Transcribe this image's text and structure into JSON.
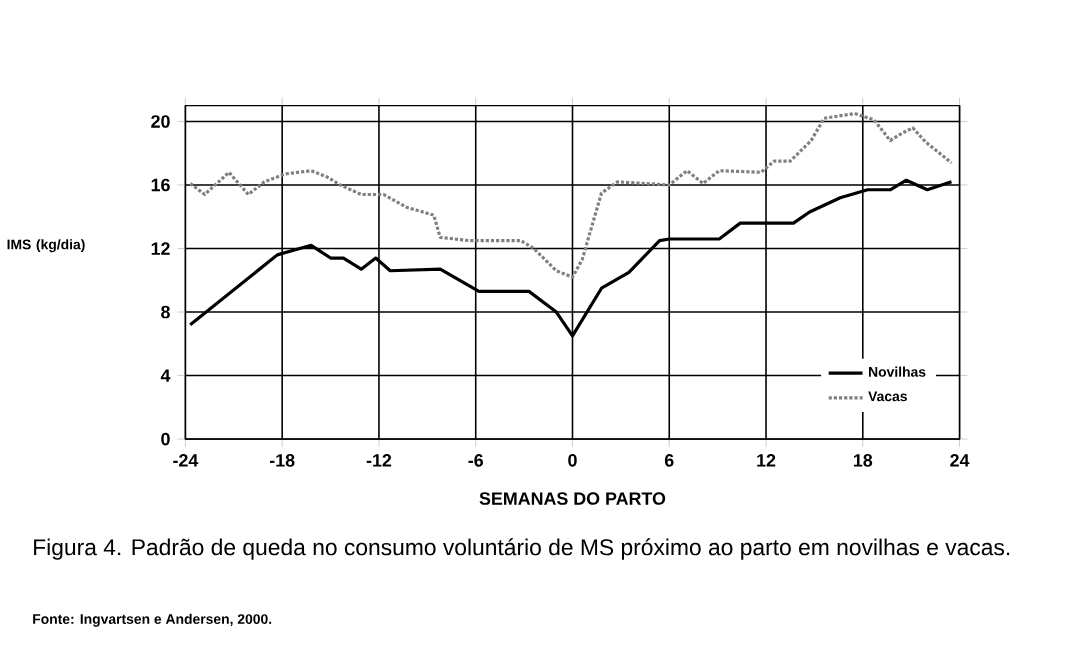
{
  "chart_data": {
    "type": "line",
    "xlabel": "SEMANAS DO PARTO",
    "ylabel": "IMS (kg/dia)",
    "xlim": [
      -24,
      24
    ],
    "xticks": [
      -24,
      -18,
      -12,
      -6,
      0,
      6,
      12,
      18,
      24
    ],
    "ylim": [
      0,
      21
    ],
    "yticks": [
      0,
      4,
      8,
      12,
      16,
      20
    ],
    "grid": true,
    "legend": "bottom right",
    "marker": "none",
    "series": [
      {
        "name": "Novilhas",
        "color": "#000000",
        "line_style": "solid",
        "x": [
          -23.7,
          -18.3,
          -16.2,
          -15,
          -14.2,
          -13.1,
          -12.2,
          -11.3,
          -8.2,
          -5.8,
          -2.7,
          -1,
          0,
          1.8,
          3.5,
          5.4,
          6,
          9.1,
          10.4,
          13.7,
          14.7,
          16.6,
          18.3,
          19.7,
          20.7,
          22,
          23.5
        ],
        "values": [
          7.2,
          11.6,
          12.2,
          11.4,
          11.4,
          10.7,
          11.4,
          10.6,
          10.7,
          9.3,
          9.3,
          8,
          6.5,
          9.5,
          10.5,
          12.5,
          12.6,
          12.6,
          13.6,
          13.6,
          14.3,
          15.2,
          15.7,
          15.7,
          16.3,
          15.7,
          16.2
        ]
      },
      {
        "name": "Vacas",
        "color": "#808080",
        "line_style": "dotted",
        "x": [
          -23.7,
          -22.8,
          -21.3,
          -20.1,
          -19.1,
          -17.8,
          -16.2,
          -15.2,
          -14.4,
          -13.1,
          -11.7,
          -10.3,
          -8.6,
          -8.2,
          -6.4,
          -3.2,
          -2.4,
          -1,
          0,
          0.6,
          1.8,
          2.8,
          6,
          7.1,
          8.1,
          9.1,
          11.7,
          12.5,
          13.5,
          14.8,
          15.6,
          17.5,
          18.7,
          19.7,
          20.5,
          21.1,
          21.9,
          23.5
        ],
        "values": [
          16.1,
          15.4,
          16.8,
          15.4,
          16.2,
          16.7,
          16.9,
          16.5,
          16,
          15.4,
          15.4,
          14.6,
          14.1,
          12.7,
          12.5,
          12.5,
          12,
          10.6,
          10.2,
          11.3,
          15.5,
          16.2,
          16,
          16.9,
          16.1,
          16.9,
          16.8,
          17.5,
          17.5,
          18.8,
          20.2,
          20.5,
          20.1,
          18.8,
          19.3,
          19.6,
          18.7,
          17.4
        ]
      }
    ],
    "annotations": [
      "Figura 4. Padrão de queda no consumo voluntário de MS próximo ao parto em novilhas e vacas.",
      "**Fonte: Ingvartsen e Andersen, 2000.**"
    ]
  }
}
